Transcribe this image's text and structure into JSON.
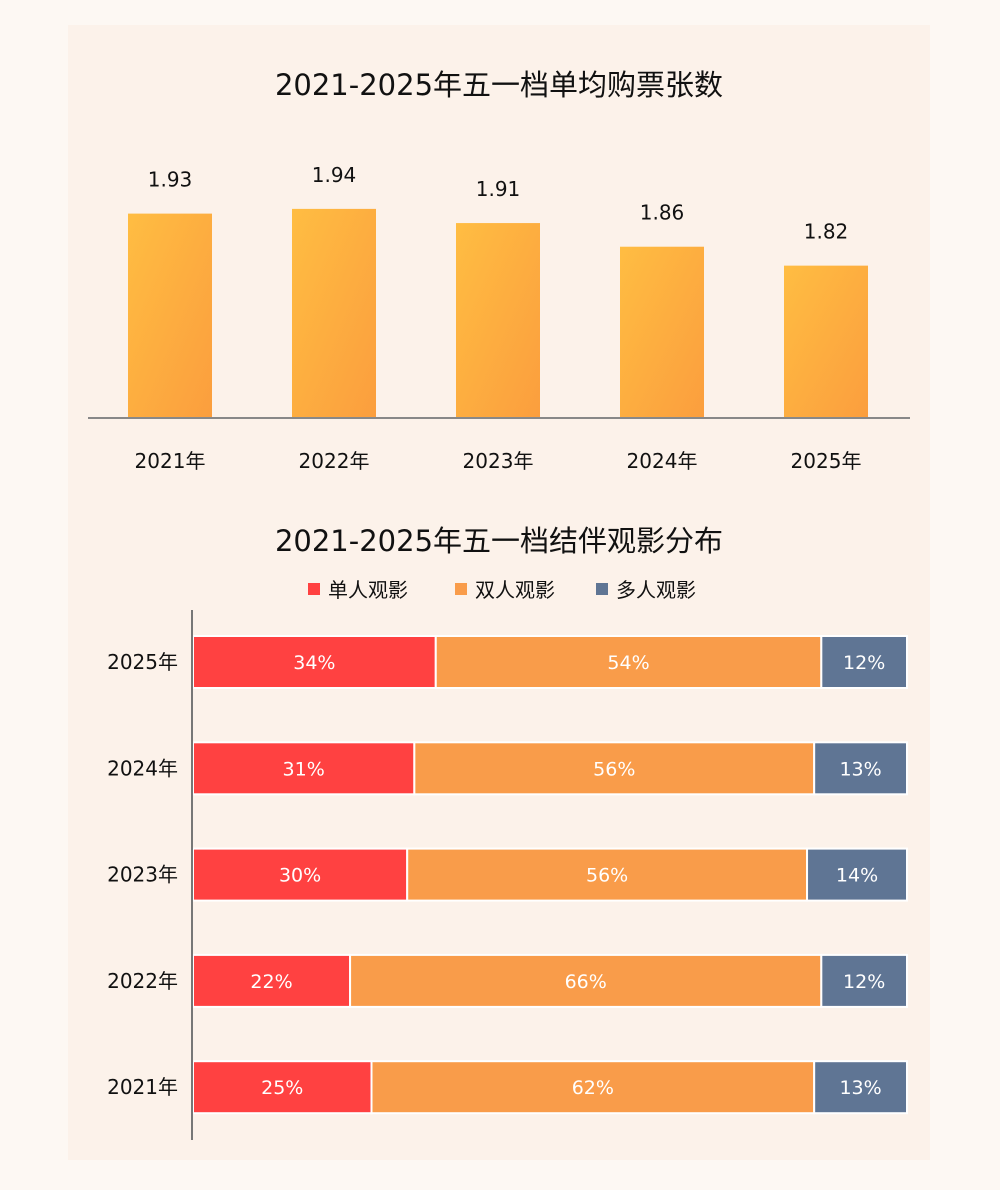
{
  "chart_data": [
    {
      "type": "bar",
      "title": "2021-2025年五一档单均购票张数",
      "categories": [
        "2021年",
        "2022年",
        "2023年",
        "2024年",
        "2025年"
      ],
      "values": [
        1.93,
        1.94,
        1.91,
        1.86,
        1.82
      ],
      "data_labels": [
        "1.93",
        "1.94",
        "1.91",
        "1.86",
        "1.82"
      ],
      "ylim": [
        1.5,
        1.95
      ],
      "grid": false,
      "colors": {
        "bar_start": "#ffbd42",
        "bar_end": "#fb9e3e",
        "axis": "#888888"
      }
    },
    {
      "type": "bar",
      "orientation": "horizontal",
      "stacked": true,
      "title": "2021-2025年五一档结伴观影分布",
      "categories": [
        "2025年",
        "2024年",
        "2023年",
        "2022年",
        "2021年"
      ],
      "legend_placement": "top",
      "series": [
        {
          "name": "单人观影",
          "color": "#ff4141",
          "values": [
            34,
            31,
            30,
            22,
            25
          ]
        },
        {
          "name": "双人观影",
          "color": "#f99c4a",
          "values": [
            54,
            56,
            56,
            66,
            62
          ]
        },
        {
          "name": "多人观影",
          "color": "#5f7594",
          "values": [
            12,
            13,
            14,
            12,
            13
          ]
        }
      ],
      "unit": "%",
      "xlim": [
        0,
        100
      ],
      "grid": false
    }
  ]
}
